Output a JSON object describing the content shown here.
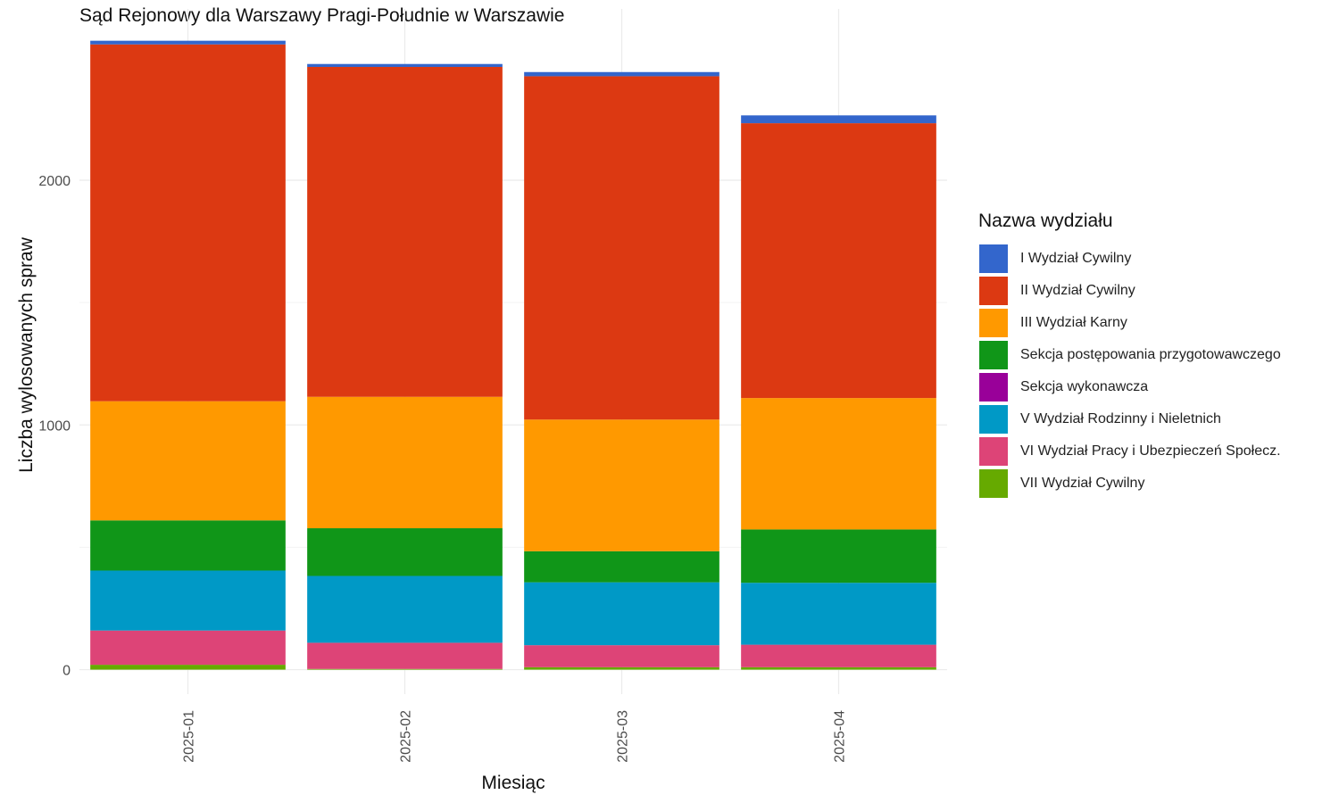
{
  "chart_data": {
    "type": "bar",
    "stacked": true,
    "title": "Sąd Rejonowy dla Warszawy Pragi-Południe w Warszawie",
    "xlabel": "Miesiąc",
    "ylabel": "Liczba wylosowanych spraw",
    "legend_title": "Nazwa wydziału",
    "legend_position": "right",
    "grid": true,
    "ylim": [
      -100,
      2700
    ],
    "yticks": [
      0,
      1000,
      2000
    ],
    "categories": [
      "2025-01",
      "2025-02",
      "2025-03",
      "2025-04"
    ],
    "series": [
      {
        "name": "VII Wydział Cywilny",
        "color": "#66AA00",
        "values": [
          20,
          3,
          10,
          10
        ]
      },
      {
        "name": "VI Wydział Pracy i Ubezpieczeń Społecz.",
        "color": "#DD4477",
        "values": [
          140,
          107,
          90,
          92
        ]
      },
      {
        "name": "V Wydział Rodzinny i Nieletnich",
        "color": "#0099C6",
        "values": [
          245,
          273,
          257,
          253
        ]
      },
      {
        "name": "Sekcja wykonawcza",
        "color": "#990099",
        "values": [
          0,
          0,
          0,
          0
        ]
      },
      {
        "name": "Sekcja postępowania przygotowawczego",
        "color": "#109618",
        "values": [
          205,
          195,
          127,
          218
        ]
      },
      {
        "name": "III Wydział Karny",
        "color": "#FF9900",
        "values": [
          487,
          537,
          538,
          537
        ]
      },
      {
        "name": "II Wydział Cywilny",
        "color": "#DC3912",
        "values": [
          1458,
          1348,
          1403,
          1123
        ]
      },
      {
        "name": "I Wydział Cywilny",
        "color": "#3366CC",
        "values": [
          15,
          12,
          17,
          32
        ]
      }
    ],
    "legend_order": [
      "I Wydział Cywilny",
      "II Wydział Cywilny",
      "III Wydział Karny",
      "Sekcja postępowania przygotowawczego",
      "Sekcja wykonawcza",
      "V Wydział Rodzinny i Nieletnich",
      "VI Wydział Pracy i Ubezpieczeń Społecz.",
      "VII Wydział Cywilny"
    ]
  }
}
